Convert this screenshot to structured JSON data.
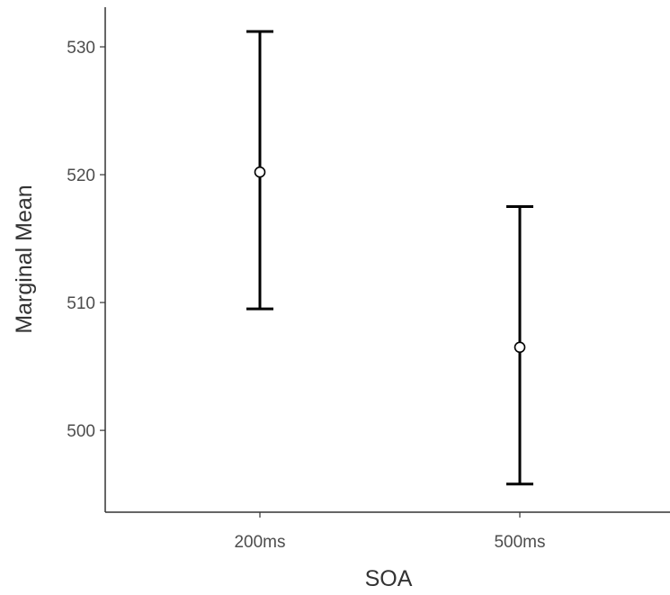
{
  "chart_data": {
    "type": "errorbar",
    "title": "",
    "xlabel": "SOA",
    "ylabel": "Marginal Mean",
    "categories": [
      "200ms",
      "500ms"
    ],
    "series": [
      {
        "values": [
          520.2,
          506.5
        ],
        "lower": [
          509.5,
          495.8
        ],
        "upper": [
          531.2,
          517.5
        ]
      }
    ],
    "yticks": [
      500,
      510,
      520,
      530
    ],
    "ylim": [
      493.6,
      533.1
    ],
    "grid": false,
    "legend": "none",
    "colors": {
      "marker_fill": "#ffffff",
      "marker_stroke": "#000000",
      "errorbar": "#000000",
      "axis": "#333333",
      "tick_label": "#4d4d4d"
    }
  }
}
